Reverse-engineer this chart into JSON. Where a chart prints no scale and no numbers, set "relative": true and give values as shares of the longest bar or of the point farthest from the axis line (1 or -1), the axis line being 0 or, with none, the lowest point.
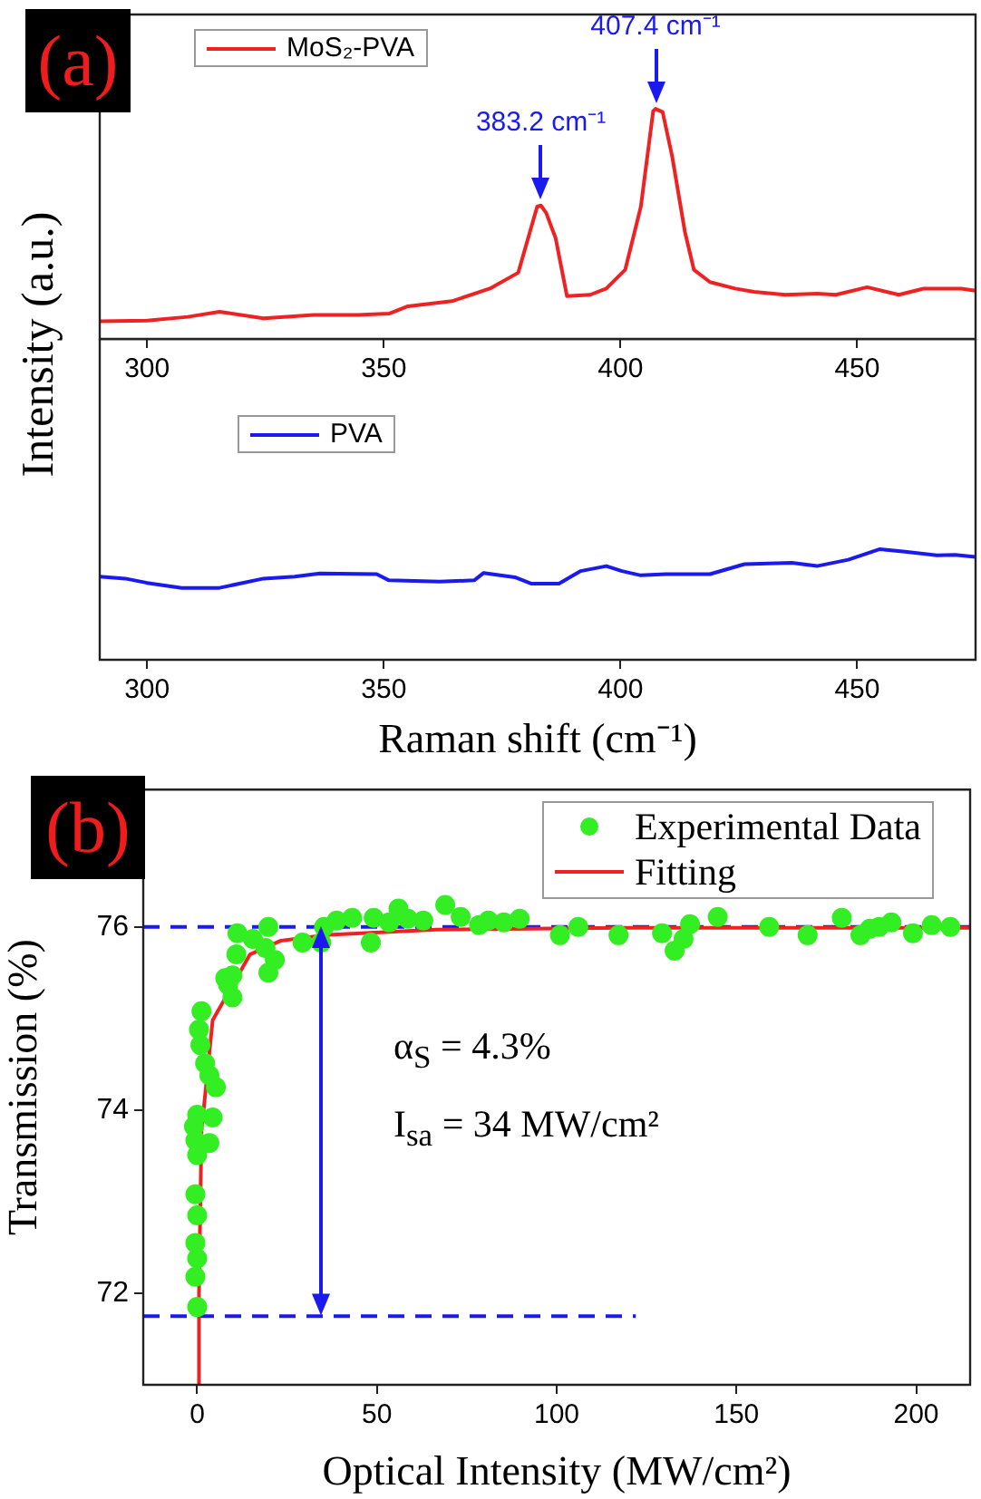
{
  "chart_data": [
    {
      "type": "line",
      "ylabel": "Intensity (a.u.)",
      "relative": true,
      "xlim": [
        290,
        475
      ],
      "xticks": [
        300,
        350,
        400,
        450
      ],
      "grid": false,
      "legend": "top left",
      "series": [
        {
          "name": "MoS₂-PVA",
          "color": "#ee2222",
          "marker": "none",
          "line_style": "solid",
          "x": [
            290,
            300,
            308.6,
            315.3,
            324.6,
            335.2,
            344.5,
            351.1,
            355.1,
            364.4,
            372.4,
            378.4,
            382.4,
            383.2,
            384.3,
            386.3,
            388.7,
            393.6,
            397,
            401,
            404.3,
            406.9,
            407.4,
            408.9,
            410.9,
            413.6,
            415.5,
            418.9,
            424.2,
            428.2,
            434.8,
            441.5,
            445.5,
            452.1,
            458.8,
            464.1,
            472,
            475
          ],
          "values": [
            0.077,
            0.08,
            0.096,
            0.118,
            0.09,
            0.104,
            0.104,
            0.11,
            0.142,
            0.164,
            0.219,
            0.288,
            0.575,
            0.58,
            0.548,
            0.438,
            0.186,
            0.192,
            0.219,
            0.301,
            0.575,
            0.99,
            1,
            0.986,
            0.795,
            0.466,
            0.301,
            0.247,
            0.219,
            0.205,
            0.192,
            0.197,
            0.192,
            0.225,
            0.192,
            0.219,
            0.219,
            0.21
          ]
        }
      ],
      "annotations": [
        "(a)",
        {
          "text": "383.2 cm⁻¹",
          "x": 383.2,
          "y": 0.58
        },
        {
          "text": "407.4 cm⁻¹",
          "x": 407.4,
          "y": 1
        }
      ]
    },
    {
      "type": "line",
      "xlabel": "Raman shift (cm⁻¹)",
      "relative": true,
      "xlim": [
        290,
        475
      ],
      "xticks": [
        300,
        350,
        400,
        450
      ],
      "grid": false,
      "legend": "top left",
      "series": [
        {
          "name": "PVA",
          "color": "#1a1aee",
          "marker": "none",
          "line_style": "solid",
          "x": [
            290,
            295.4,
            300,
            307.3,
            315.3,
            324.6,
            331.2,
            336.5,
            348.5,
            351.1,
            361.8,
            369.1,
            371.1,
            377.7,
            381.1,
            387,
            391.6,
            397,
            400.3,
            404.3,
            409.6,
            418.9,
            426.2,
            436.2,
            441.5,
            448.1,
            454.8,
            460.1,
            466.8,
            470.7,
            475
          ],
          "values": [
            0.751,
            0.734,
            0.695,
            0.65,
            0.65,
            0.734,
            0.751,
            0.78,
            0.774,
            0.718,
            0.706,
            0.718,
            0.785,
            0.746,
            0.689,
            0.689,
            0.802,
            0.847,
            0.802,
            0.763,
            0.774,
            0.774,
            0.864,
            0.876,
            0.847,
            0.904,
            1,
            0.977,
            0.944,
            0.949,
            0.93
          ]
        }
      ]
    },
    {
      "type": "scatter",
      "xlabel": "Optical Intensity (MW/cm²)",
      "ylabel": "Transmission (%)",
      "xlim": [
        -15,
        215
      ],
      "xticks": [
        0,
        50,
        100,
        150,
        200
      ],
      "ylim": [
        71,
        77.5
      ],
      "yticks": [
        72,
        74,
        76
      ],
      "grid": false,
      "legend": "top right",
      "series": [
        {
          "name": "Experimental Data",
          "type": "scatter",
          "color": "#33ee22",
          "marker": "circle",
          "x": [
            -0.5,
            0,
            -0.5,
            0,
            -0.5,
            0,
            -0.5,
            0,
            3.4,
            -0.9,
            0,
            4.3,
            5.2,
            3.4,
            2.2,
            0.9,
            0.5,
            1.2,
            8.6,
            7.8,
            9.8,
            9.8,
            10.9,
            11.2,
            15.5,
            19.8,
            19,
            21.6,
            19.8,
            29.3,
            34.5,
            35.3,
            38.8,
            43.1,
            48.3,
            49.1,
            53.4,
            56,
            58.6,
            62.9,
            69,
            73.3,
            78.4,
            81,
            85.3,
            89.7,
            100.9,
            106,
            117.2,
            129.3,
            132.8,
            135.3,
            137.1,
            144.8,
            159.1,
            169.8,
            179.3,
            184.5,
            187.1,
            189.7,
            193.1,
            199.1,
            204.3,
            209.5
          ],
          "values": [
            73.67,
            73.51,
            73.08,
            72.85,
            72.55,
            72.38,
            72.18,
            71.85,
            73.64,
            73.82,
            73.95,
            73.92,
            74.25,
            74.38,
            74.51,
            74.71,
            74.88,
            75.08,
            75.37,
            75.44,
            75.23,
            75.47,
            75.7,
            75.93,
            75.87,
            76,
            75.77,
            75.64,
            75.5,
            75.83,
            75.83,
            76,
            76.07,
            76.1,
            75.83,
            76.1,
            76.05,
            76.2,
            76.09,
            76.07,
            76.24,
            76.11,
            76.02,
            76.07,
            76.05,
            76.09,
            75.91,
            76,
            75.91,
            75.93,
            75.74,
            75.87,
            76.03,
            76.11,
            76,
            75.91,
            76.1,
            75.91,
            75.98,
            76,
            76.05,
            75.93,
            76.02,
            76
          ]
        },
        {
          "name": "Fitting",
          "type": "line",
          "color": "#ee2222",
          "marker": "none",
          "line_style": "solid",
          "x": [
            0.2,
            0.5,
            1.2,
            4.3,
            14.7,
            23.3,
            35.3,
            66.4,
            118,
            215
          ],
          "values": [
            71,
            72,
            73.77,
            74.98,
            75.7,
            75.85,
            75.91,
            75.97,
            75.99,
            75.99
          ]
        },
        {
          "type": "line",
          "color": "#1a1aee",
          "marker": "none",
          "line_style": "dashed",
          "x": [
            -15,
            122
          ],
          "values": [
            71.75,
            71.75
          ]
        }
      ],
      "ref_lines": [
        {
          "axis": "y",
          "value": 76,
          "color": "#1a1aee",
          "line_style": "dashed"
        }
      ],
      "annotations": [
        "(b)",
        "α$_{S}$ = 4.3%",
        "I$_{sa}$ = 34 MW/cm²"
      ]
    }
  ]
}
